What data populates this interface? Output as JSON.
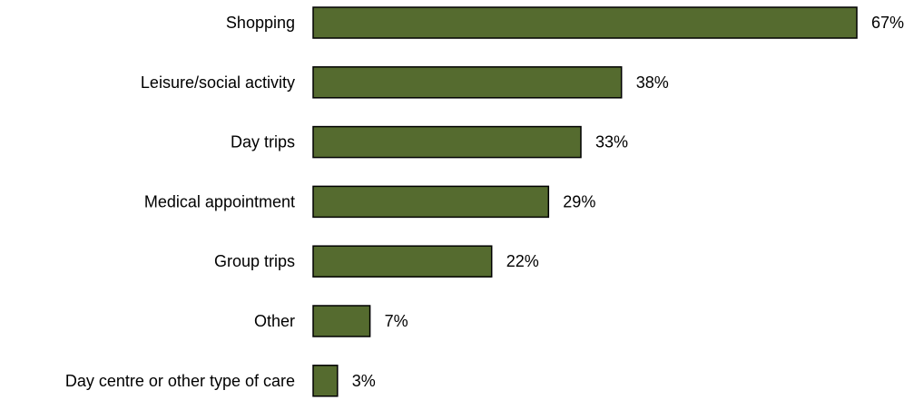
{
  "chart_data": {
    "type": "bar",
    "orientation": "horizontal",
    "categories": [
      "Shopping",
      "Leisure/social activity",
      "Day trips",
      "Medical appointment",
      "Group trips",
      "Other",
      "Day centre or other type of care"
    ],
    "values": [
      67,
      38,
      33,
      29,
      22,
      7,
      3
    ],
    "value_labels": [
      "67%",
      "38%",
      "33%",
      "29%",
      "22%",
      "7%",
      "3%"
    ],
    "unit": "%",
    "title": "",
    "xlabel": "",
    "ylabel": "",
    "xlim": [
      0,
      67
    ],
    "grid": false,
    "legend": "none",
    "colors": {
      "bar_fill": "#556B2F",
      "bar_stroke": "#000000",
      "text": "#000000",
      "background": "#FFFFFF"
    }
  }
}
